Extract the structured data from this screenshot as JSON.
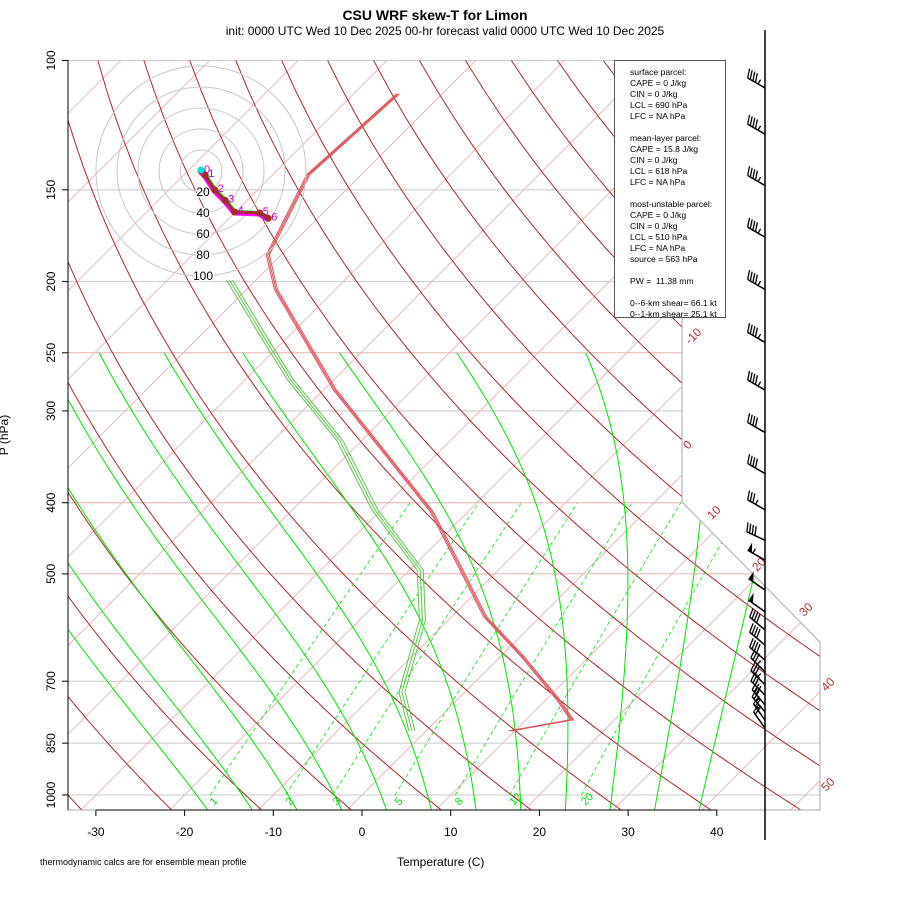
{
  "title": "CSU WRF skew-T for Limon",
  "subtitle": "init: 0000 UTC Wed 10 Dec 2025     00-hr forecast valid 0000 UTC Wed 10 Dec 2025",
  "footnote": "thermodynamic calcs are for ensemble mean profile",
  "info_box": {
    "lines": [
      "surface parcel:",
      "CAPE = 0 J/kg",
      "CIN = 0 J/kg",
      "LCL = 690 hPa",
      "LFC = NA hPa",
      "",
      "mean-layer parcel:",
      "CAPE = 15.8 J/kg",
      "CIN = 0 J/kg",
      "LCL = 618 hPa",
      "LFC = NA hPa",
      "",
      "most-unstable parcel:",
      "CAPE = 0 J/kg",
      "CIN = 0 J/kg",
      "LCL = 510 hPa",
      "LFC = NA hPa",
      "source = 563 hPa",
      "",
      "PW =  11.38 mm",
      "",
      "0--6-km shear= 66.1 kt",
      "0--1-km shear= 25.1 kt"
    ]
  },
  "chart_data": {
    "type": "line",
    "subtype": "skew-T log-P",
    "title": "CSU WRF skew-T for Limon",
    "xlabel": "Temperature (C)",
    "ylabel": "P (hPa)",
    "x_ticks": [
      -30,
      -20,
      -10,
      0,
      10,
      20,
      30,
      40
    ],
    "y_ticks": [
      100,
      150,
      200,
      250,
      300,
      400,
      500,
      700,
      850,
      1000
    ],
    "y_scale": "log",
    "isotherm_labels": [
      -10,
      0,
      10,
      20,
      30,
      40,
      50
    ],
    "mixing_ratio_labels": [
      1,
      2,
      3,
      5,
      8,
      12,
      20
    ],
    "colors": {
      "temperature": "#e0505a",
      "dewpoint": "#5cc44a",
      "dry_adiabat": "#a52a2a",
      "isotherm": "#e8b8b8",
      "moist_adiabat": "#00e000",
      "mixing_ratio": "#00e000",
      "wind": "#000000"
    },
    "temperature": {
      "p": [
        818,
        790,
        742,
        649,
        572,
        412,
        281,
        205,
        184,
        143,
        111
      ],
      "T": [
        9.5,
        15.2,
        11.4,
        2.6,
        -6.2,
        -24,
        -48.7,
        -66.7,
        -71.5,
        -76,
        -75
      ]
    },
    "dewpoint": {
      "p": [
        818,
        724,
        578,
        494,
        409,
        329,
        272,
        240,
        199
      ],
      "Td": [
        -1.6,
        -7.1,
        -12.9,
        -18.8,
        -30.7,
        -42.5,
        -54.9,
        -62.2,
        -73
      ]
    },
    "wind_barbs": {
      "p": [
        109,
        126,
        148,
        174,
        205,
        242,
        281,
        321,
        365,
        409,
        450,
        479,
        526,
        563,
        596,
        625,
        655,
        680,
        708,
        731,
        754,
        771,
        791,
        811
      ],
      "dir_deg": [
        300,
        300,
        300,
        300,
        300,
        300,
        300,
        300,
        300,
        300,
        295,
        300,
        305,
        305,
        310,
        310,
        310,
        315,
        315,
        315,
        320,
        320,
        325,
        325
      ],
      "speed_kt": [
        45,
        45,
        45,
        45,
        45,
        45,
        45,
        40,
        40,
        35,
        40,
        55,
        50,
        50,
        40,
        40,
        40,
        35,
        35,
        30,
        30,
        25,
        25,
        20
      ]
    },
    "hodograph": {
      "rings_kt": [
        20,
        40,
        60,
        80,
        100
      ],
      "u_kt": [
        0,
        4,
        13,
        23,
        32,
        56,
        64
      ],
      "v_kt": [
        0,
        -4,
        -18,
        -28,
        -39,
        -40,
        -45
      ],
      "height_labels": [
        "0",
        "1",
        "2",
        "3",
        "4",
        "5",
        "6"
      ]
    }
  }
}
